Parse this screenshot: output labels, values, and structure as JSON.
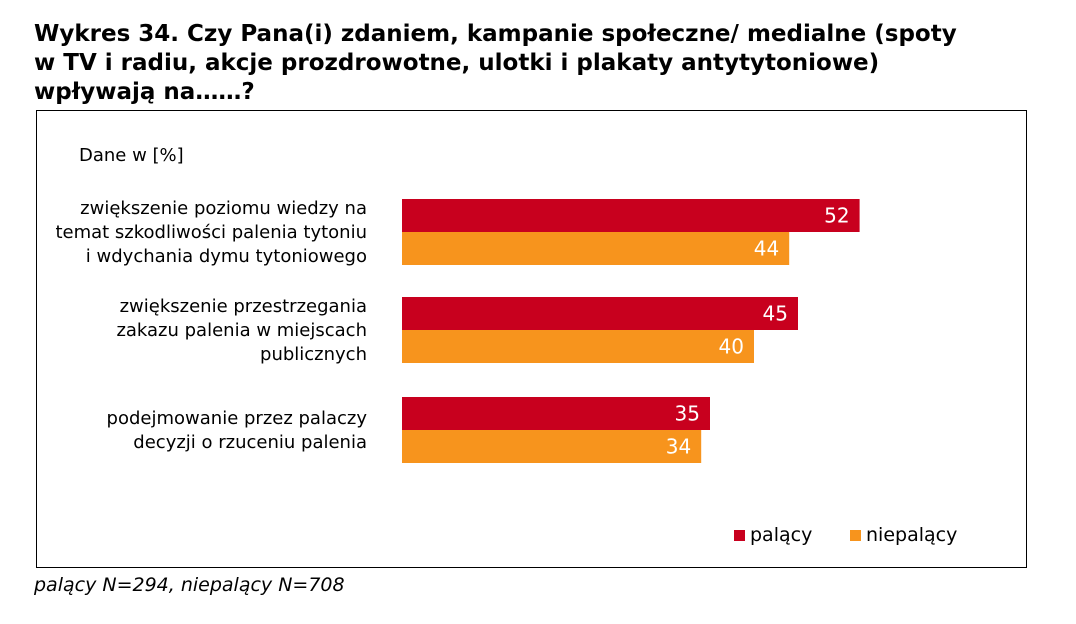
{
  "title": {
    "lines": [
      "Wykres 34. Czy Pana(i) zdaniem, kampanie społeczne/ medialne (spoty",
      "w TV i radiu, akcje prozdrowotne, ulotki i plakaty antytytoniowe)",
      "wpływają na……?"
    ]
  },
  "footnote": "palący N=294, niepalący N=708",
  "colors": {
    "palacy": "#c8001e",
    "niepalacy": "#f7941d"
  },
  "chart_data": {
    "type": "bar",
    "orientation": "horizontal",
    "unit_label": "Dane w [%]",
    "categories": [
      [
        "zwiększenie poziomu wiedzy na",
        "temat szkodliwości palenia tytoniu",
        "i wdychania dymu tytoniowego"
      ],
      [
        "zwiększenie przestrzegania",
        "zakazu palenia w miejscach",
        "publicznych"
      ],
      [
        "podejmowanie przez palaczy",
        "decyzji o rzuceniu palenia"
      ]
    ],
    "series": [
      {
        "name": "palący",
        "values": [
          52,
          45,
          35
        ]
      },
      {
        "name": "niepalący",
        "values": [
          44,
          40,
          34
        ]
      }
    ],
    "xlim": [
      0,
      60
    ],
    "grid": false,
    "legend": "bottom-right"
  }
}
